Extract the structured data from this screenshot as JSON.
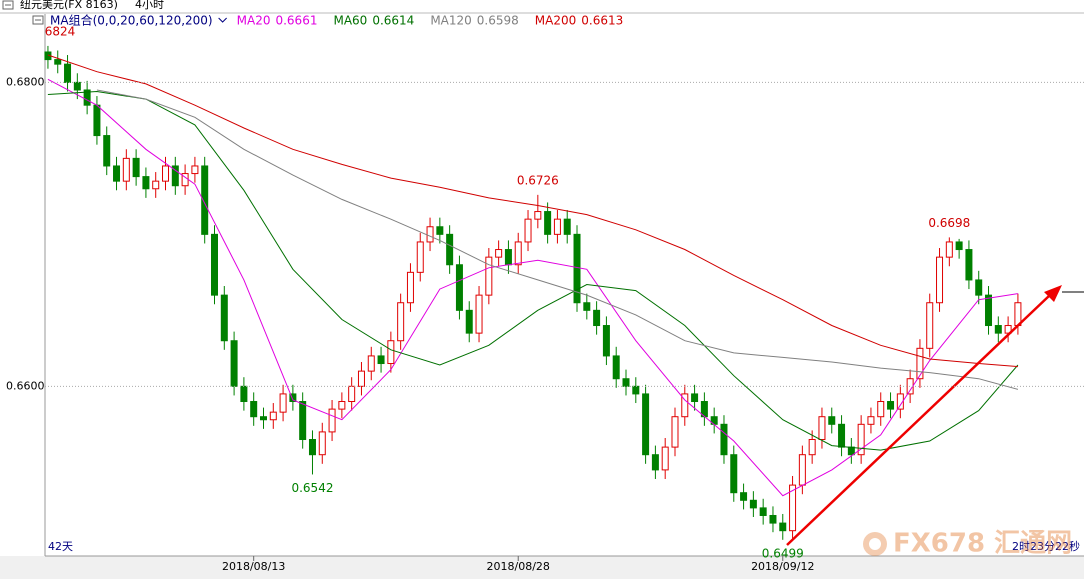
{
  "header": {
    "symbol": "纽元美元(FX 8163)",
    "period": "4小时"
  },
  "chart_data": {
    "type": "candlestick",
    "x": [
      0,
      1,
      2,
      3,
      4,
      5,
      6,
      7,
      8,
      9,
      10,
      11,
      12,
      13,
      14,
      15,
      16,
      17,
      18,
      19,
      20,
      21,
      22,
      23,
      24,
      25,
      26,
      27,
      28,
      29,
      30,
      31,
      32,
      33,
      34,
      35,
      36,
      37,
      38,
      39,
      40,
      41,
      42,
      43,
      44,
      45,
      46,
      47,
      48,
      49,
      50,
      51,
      52,
      53,
      54,
      55,
      56,
      57,
      58,
      59,
      60,
      61,
      62,
      63,
      64,
      65,
      66,
      67,
      68,
      69,
      70,
      71,
      72,
      73,
      74,
      75,
      76,
      77,
      78,
      79,
      80,
      81,
      82,
      83,
      84,
      85,
      86,
      87,
      88,
      89,
      90,
      91,
      92,
      93,
      94,
      95,
      96,
      97,
      98,
      99
    ],
    "open": [
      0.682,
      0.6815,
      0.6812,
      0.68,
      0.6795,
      0.6785,
      0.6765,
      0.6745,
      0.6735,
      0.675,
      0.6738,
      0.673,
      0.6735,
      0.6745,
      0.6732,
      0.674,
      0.6745,
      0.67,
      0.666,
      0.663,
      0.66,
      0.659,
      0.658,
      0.6578,
      0.6583,
      0.6595,
      0.659,
      0.6565,
      0.6555,
      0.657,
      0.6585,
      0.659,
      0.66,
      0.661,
      0.662,
      0.6615,
      0.663,
      0.6655,
      0.6675,
      0.6695,
      0.6705,
      0.67,
      0.668,
      0.665,
      0.6635,
      0.666,
      0.6685,
      0.669,
      0.668,
      0.6695,
      0.671,
      0.6715,
      0.67,
      0.671,
      0.67,
      0.6655,
      0.665,
      0.664,
      0.662,
      0.6605,
      0.66,
      0.6595,
      0.6555,
      0.6545,
      0.656,
      0.658,
      0.6595,
      0.659,
      0.658,
      0.6575,
      0.6555,
      0.653,
      0.6525,
      0.652,
      0.6515,
      0.651,
      0.6505,
      0.6535,
      0.6555,
      0.6565,
      0.658,
      0.6575,
      0.656,
      0.6555,
      0.6575,
      0.658,
      0.659,
      0.6585,
      0.6595,
      0.6605,
      0.6625,
      0.6655,
      0.6685,
      0.6695,
      0.669,
      0.667,
      0.666,
      0.664,
      0.6635,
      0.664
    ],
    "high": [
      0.6824,
      0.6821,
      0.6818,
      0.6806,
      0.6801,
      0.6791,
      0.6771,
      0.6751,
      0.6756,
      0.6756,
      0.6744,
      0.6741,
      0.6751,
      0.6751,
      0.6746,
      0.6751,
      0.6751,
      0.6706,
      0.6666,
      0.6636,
      0.6606,
      0.6596,
      0.6586,
      0.6589,
      0.6601,
      0.6601,
      0.6596,
      0.6571,
      0.6576,
      0.6591,
      0.6596,
      0.6606,
      0.6616,
      0.6626,
      0.6626,
      0.6636,
      0.6661,
      0.6681,
      0.6701,
      0.6711,
      0.6711,
      0.6706,
      0.6686,
      0.6656,
      0.6666,
      0.6691,
      0.6696,
      0.6696,
      0.6701,
      0.6716,
      0.6726,
      0.6721,
      0.6716,
      0.6716,
      0.6706,
      0.6661,
      0.6656,
      0.6646,
      0.6626,
      0.6611,
      0.6606,
      0.6601,
      0.6561,
      0.6566,
      0.6586,
      0.6601,
      0.6601,
      0.6596,
      0.6586,
      0.6581,
      0.6561,
      0.6536,
      0.6531,
      0.6526,
      0.6521,
      0.6516,
      0.6541,
      0.6561,
      0.6571,
      0.6586,
      0.6586,
      0.6581,
      0.6566,
      0.6581,
      0.6586,
      0.6596,
      0.6596,
      0.6601,
      0.6611,
      0.6631,
      0.6661,
      0.6691,
      0.6698,
      0.6697,
      0.6696,
      0.6676,
      0.6666,
      0.6646,
      0.6646,
      0.6661
    ],
    "low": [
      0.6809,
      0.6806,
      0.6794,
      0.6789,
      0.6779,
      0.6759,
      0.6739,
      0.6729,
      0.6729,
      0.6732,
      0.6724,
      0.6724,
      0.6729,
      0.6726,
      0.6726,
      0.6734,
      0.6694,
      0.6654,
      0.6624,
      0.6594,
      0.6584,
      0.6574,
      0.6572,
      0.6572,
      0.6577,
      0.6584,
      0.6559,
      0.6542,
      0.6549,
      0.6564,
      0.6579,
      0.6584,
      0.6594,
      0.6604,
      0.6609,
      0.6609,
      0.6624,
      0.6649,
      0.6669,
      0.6689,
      0.6694,
      0.6674,
      0.6644,
      0.6629,
      0.6629,
      0.6654,
      0.6679,
      0.6674,
      0.6674,
      0.6689,
      0.6704,
      0.6694,
      0.6694,
      0.6694,
      0.6649,
      0.6644,
      0.6634,
      0.6614,
      0.6599,
      0.6594,
      0.6589,
      0.6549,
      0.6539,
      0.6539,
      0.6554,
      0.6574,
      0.6584,
      0.6574,
      0.6569,
      0.6549,
      0.6524,
      0.6519,
      0.6514,
      0.6509,
      0.6504,
      0.6499,
      0.6499,
      0.6529,
      0.6549,
      0.6559,
      0.6569,
      0.6554,
      0.6549,
      0.6549,
      0.6569,
      0.6574,
      0.6579,
      0.6579,
      0.6589,
      0.6599,
      0.6619,
      0.6649,
      0.6679,
      0.6684,
      0.6664,
      0.6654,
      0.6634,
      0.6629,
      0.6629,
      0.6634
    ],
    "close": [
      0.6815,
      0.6812,
      0.68,
      0.6795,
      0.6785,
      0.6765,
      0.6745,
      0.6735,
      0.675,
      0.6738,
      0.673,
      0.6735,
      0.6745,
      0.6732,
      0.674,
      0.6745,
      0.67,
      0.666,
      0.663,
      0.66,
      0.659,
      0.658,
      0.6578,
      0.6583,
      0.6595,
      0.659,
      0.6565,
      0.6555,
      0.657,
      0.6585,
      0.659,
      0.66,
      0.661,
      0.662,
      0.6615,
      0.663,
      0.6655,
      0.6675,
      0.6695,
      0.6705,
      0.67,
      0.668,
      0.665,
      0.6635,
      0.666,
      0.6685,
      0.669,
      0.668,
      0.6695,
      0.671,
      0.6715,
      0.67,
      0.671,
      0.67,
      0.6655,
      0.665,
      0.664,
      0.662,
      0.6605,
      0.66,
      0.6595,
      0.6555,
      0.6545,
      0.656,
      0.658,
      0.6595,
      0.659,
      0.658,
      0.6575,
      0.6555,
      0.653,
      0.6525,
      0.652,
      0.6515,
      0.651,
      0.6505,
      0.6535,
      0.6555,
      0.6565,
      0.658,
      0.6575,
      0.656,
      0.6555,
      0.6575,
      0.658,
      0.659,
      0.6585,
      0.6595,
      0.6605,
      0.6625,
      0.6655,
      0.6685,
      0.6695,
      0.669,
      0.667,
      0.666,
      0.664,
      0.6635,
      0.664,
      0.6655
    ],
    "up_color": "#e00000",
    "down_color": "#008000",
    "xlim": [
      -0.3,
      103.5
    ],
    "xticks": [
      {
        "value": 21,
        "label": "2018/08/13"
      },
      {
        "value": 48,
        "label": "2018/08/28"
      },
      {
        "value": 75,
        "label": "2018/09/12"
      }
    ],
    "ylim": [
      0.6489,
      0.6845
    ],
    "yticks": [
      {
        "value": 0.66,
        "label": "0.6600"
      },
      {
        "value": 0.68,
        "label": "0.6800"
      }
    ],
    "grid": true,
    "ma_group_label": "MA组合(0,0,20,60,120,200)",
    "overlays": {
      "x": [
        0,
        5,
        10,
        15,
        20,
        25,
        30,
        35,
        40,
        45,
        50,
        55,
        60,
        65,
        70,
        75,
        80,
        85,
        90,
        95,
        99
      ],
      "series": [
        {
          "name": "MA20",
          "color": "#e000e0",
          "values": [
            0.6802,
            0.6785,
            0.6756,
            0.6733,
            0.667,
            0.6591,
            0.6578,
            0.6611,
            0.6664,
            0.6678,
            0.6683,
            0.6677,
            0.663,
            0.6591,
            0.6564,
            0.6528,
            0.6545,
            0.6568,
            0.6617,
            0.6657,
            0.6661
          ]
        },
        {
          "name": "MA60",
          "color": "#007000",
          "values": [
            0.6792,
            0.6794,
            0.6789,
            0.6772,
            0.6729,
            0.6677,
            0.6644,
            0.6624,
            0.6614,
            0.6627,
            0.665,
            0.6667,
            0.6663,
            0.664,
            0.6607,
            0.6578,
            0.6561,
            0.6558,
            0.6564,
            0.6584,
            0.6614
          ]
        },
        {
          "name": "MA120",
          "color": "#808080",
          "values": [
            null,
            0.6795,
            0.6789,
            0.6777,
            0.6756,
            0.6739,
            0.6723,
            0.671,
            0.6696,
            0.668,
            0.667,
            0.666,
            0.6647,
            0.663,
            0.6622,
            0.6619,
            0.6616,
            0.6612,
            0.6609,
            0.6605,
            0.6598
          ]
        },
        {
          "name": "MA200",
          "color": "#d00000",
          "values": [
            0.6818,
            0.6807,
            0.6799,
            0.6785,
            0.677,
            0.6756,
            0.6746,
            0.6737,
            0.6731,
            0.6724,
            0.6719,
            0.6713,
            0.6703,
            0.669,
            0.6673,
            0.6657,
            0.664,
            0.6627,
            0.6618,
            0.6615,
            0.6613
          ]
        }
      ]
    },
    "annotations": [
      {
        "x": 0,
        "y": 0.6824,
        "label": "6824",
        "color": "#d00000"
      },
      {
        "x": 27,
        "y": 0.6542,
        "color": "#008000"
      },
      {
        "x": 50,
        "y": 0.6726,
        "color": "#d00000"
      },
      {
        "x": 75,
        "y": 0.6499,
        "color": "#008000"
      },
      {
        "x": 92,
        "y": 0.6698,
        "color": "#d00000"
      }
    ]
  },
  "footer": {
    "span": "42天",
    "timer": "2时23分22秒",
    "watermark": "FX678 汇通网"
  }
}
